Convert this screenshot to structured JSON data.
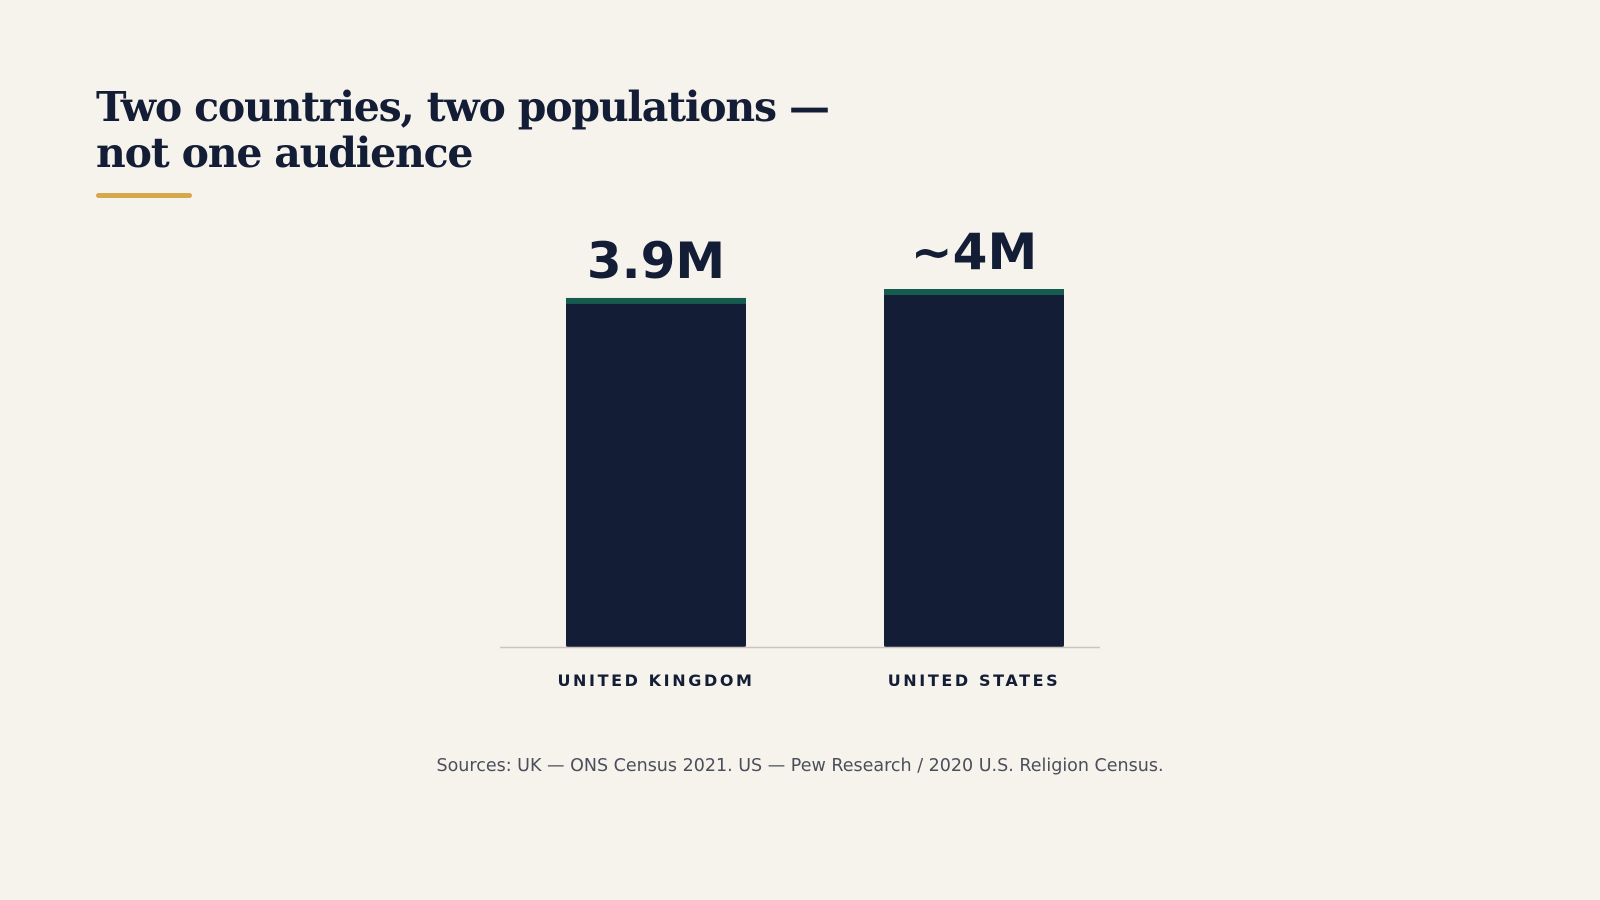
{
  "slide": {
    "title_line1": "Two countries, two populations —",
    "title_line2": "not one audience",
    "sources": "Sources: UK — ONS Census 2021. US — Pew Research / 2020 U.S. Religion Census."
  },
  "colors": {
    "background": "#f6f3ec",
    "bar": "#141d36",
    "bar_cap": "#165c4e",
    "accent_rule": "#d6a84d",
    "axis": "#c9c6bf",
    "text": "#141d36"
  },
  "chart_data": {
    "type": "bar",
    "categories": [
      "UNITED KINGDOM",
      "UNITED STATES"
    ],
    "values": [
      3.9,
      4.0
    ],
    "value_labels": [
      "3.9M",
      "~4M"
    ],
    "ylim": [
      0,
      4.0
    ],
    "grid": false,
    "legend": false
  }
}
